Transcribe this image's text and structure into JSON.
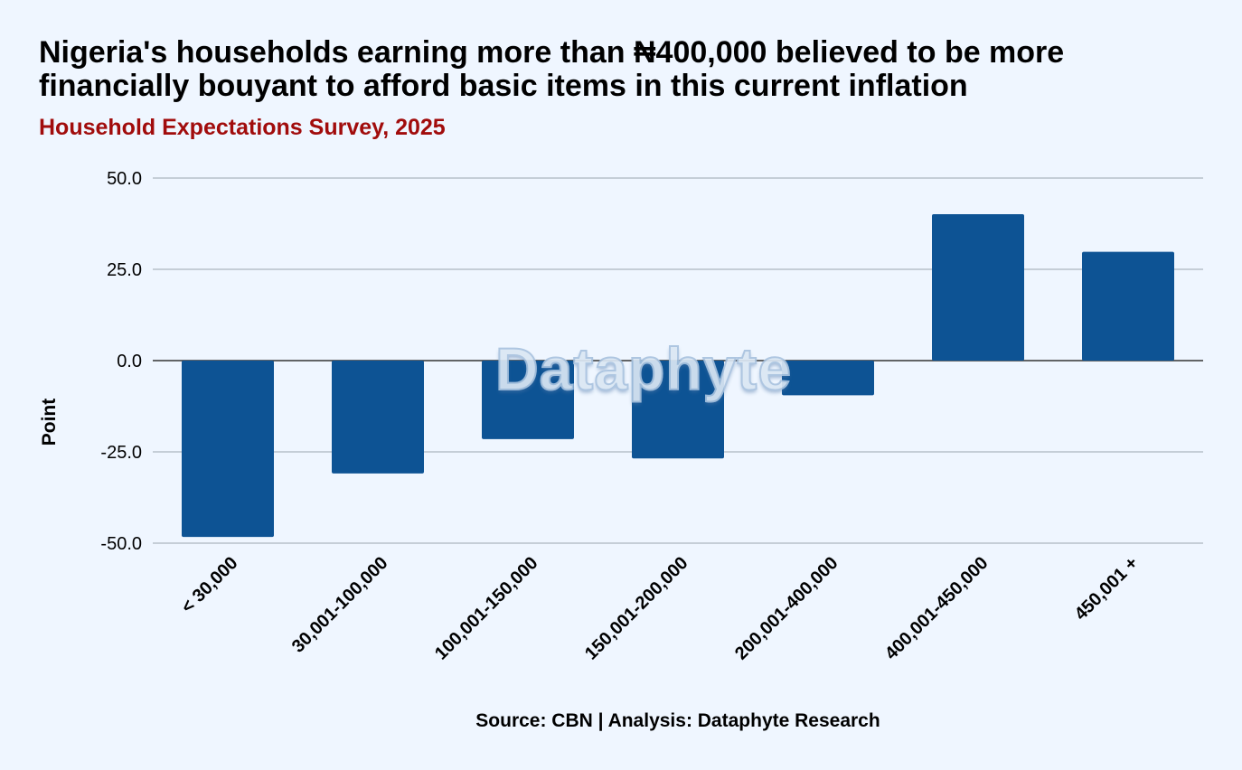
{
  "chart_data": {
    "type": "bar",
    "title": "Nigeria's households earning more than ₦400,000 believed to be more financially bouyant to afford basic items in this current inflation",
    "subtitle": "Household Expectations Survey, 2025",
    "ylabel": "Point",
    "xlabel": "",
    "categories": [
      "< 30,000",
      "30,001-100,000",
      "100,001-150,000",
      "150,001-200,000",
      "200,001-400,000",
      "400,001-450,000",
      "450,001 +"
    ],
    "values": [
      -48.3,
      -30.9,
      -21.5,
      -26.8,
      -9.5,
      40.1,
      29.8
    ],
    "ylim": [
      -50,
      50
    ],
    "yticks": [
      "50.0",
      "25.0",
      "0.0",
      "-25.0",
      "-50.0"
    ],
    "grid": true,
    "bar_color": "#0d5394",
    "source": "Source: CBN | Analysis: Dataphyte Research",
    "watermark": "Dataphyte"
  }
}
